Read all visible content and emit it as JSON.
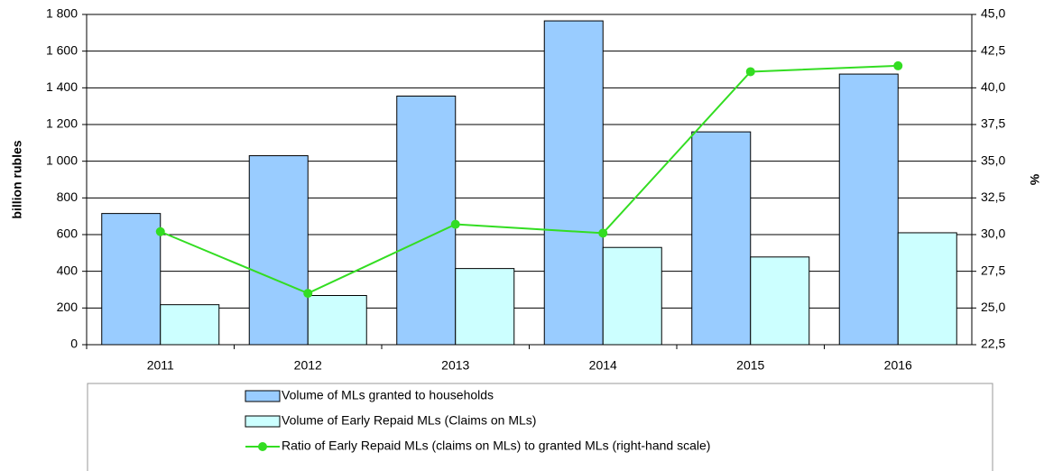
{
  "chart_data": {
    "type": "bar",
    "categories": [
      "2011",
      "2012",
      "2013",
      "2014",
      "2015",
      "2016"
    ],
    "y_label": "billion rubles",
    "y2_label": "%",
    "ylim": [
      0,
      1800
    ],
    "yticks": [
      0,
      200,
      400,
      600,
      800,
      {
        "value": 1000,
        "label": "1 000"
      },
      {
        "value": 1200,
        "label": "1 200"
      },
      {
        "value": 1400,
        "label": "1 400"
      },
      {
        "value": 1600,
        "label": "1 600"
      },
      {
        "value": 1800,
        "label": "1 800"
      }
    ],
    "y2lim": [
      22.5,
      45
    ],
    "y2ticks": [
      {
        "value": 22.5,
        "label": "22,5"
      },
      {
        "value": 25,
        "label": "25,0"
      },
      {
        "value": 27.5,
        "label": "27,5"
      },
      {
        "value": 30,
        "label": "30,0"
      },
      {
        "value": 32.5,
        "label": "32,5"
      },
      {
        "value": 35,
        "label": "35,0"
      },
      {
        "value": 37.5,
        "label": "37,5"
      },
      {
        "value": 40,
        "label": "40,0"
      },
      {
        "value": 42.5,
        "label": "42,5"
      },
      {
        "value": 45,
        "label": "45,0"
      }
    ],
    "grid": true,
    "series": [
      {
        "name": "Volume of MLs granted to households",
        "type": "bar",
        "color": "#99ccff",
        "values": [
          715,
          1030,
          1355,
          1765,
          1160,
          1475
        ]
      },
      {
        "name": "Volume of Early Repaid MLs (Claims on MLs)",
        "type": "bar",
        "color": "#ccffff",
        "values": [
          218,
          268,
          415,
          530,
          478,
          610
        ]
      },
      {
        "name": "Ratio of Early Repaid MLs (claims on MLs) to granted MLs (right-hand scale)",
        "type": "line",
        "axis": "y2",
        "color": "#33dd22",
        "values": [
          30.2,
          26.0,
          30.7,
          30.1,
          41.1,
          41.5
        ]
      }
    ]
  }
}
